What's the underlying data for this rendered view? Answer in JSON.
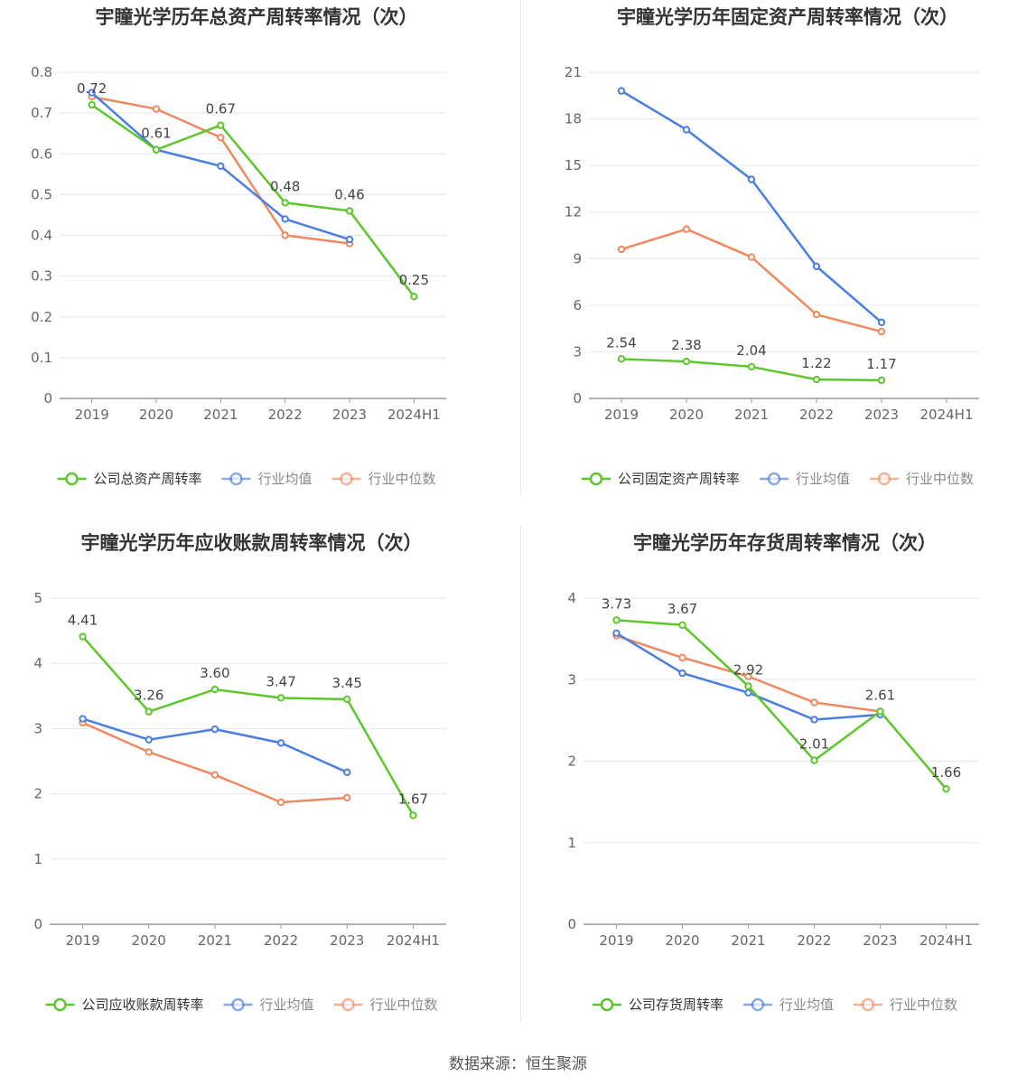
{
  "source": "数据来源：恒生聚源",
  "colors": {
    "company": "#5cc72c",
    "average": "#4a7ee0",
    "median": "#f0895f",
    "grid": "#e6e6ef",
    "axis": "#999999",
    "text": "#666666"
  },
  "chart_data": [
    {
      "type": "line",
      "title": "宇瞳光学历年总资产周转率情况（次）",
      "categories": [
        "2019",
        "2020",
        "2021",
        "2022",
        "2023",
        "2024H1"
      ],
      "y_ticks": [
        "0",
        "0.1",
        "0.2",
        "0.3",
        "0.4",
        "0.5",
        "0.6",
        "0.7",
        "0.8"
      ],
      "ylim": [
        0,
        0.8
      ],
      "grid": true,
      "legend_position": "bottom",
      "series": [
        {
          "name": "公司总资产周转率",
          "role": "company",
          "values": [
            0.72,
            0.61,
            0.67,
            0.48,
            0.46,
            0.25
          ],
          "labels": [
            "0.72",
            "0.61",
            "0.67",
            "0.48",
            "0.46",
            "0.25"
          ]
        },
        {
          "name": "行业均值",
          "role": "average",
          "values": [
            0.75,
            0.61,
            0.57,
            0.44,
            0.39,
            null
          ]
        },
        {
          "name": "行业中位数",
          "role": "median",
          "values": [
            0.74,
            0.71,
            0.64,
            0.4,
            0.38,
            null
          ]
        }
      ]
    },
    {
      "type": "line",
      "title": "宇瞳光学历年固定资产周转率情况（次）",
      "categories": [
        "2019",
        "2020",
        "2021",
        "2022",
        "2023",
        "2024H1"
      ],
      "y_ticks": [
        "0",
        "3",
        "6",
        "9",
        "12",
        "15",
        "18",
        "21"
      ],
      "ylim": [
        0,
        21
      ],
      "grid": true,
      "legend_position": "bottom",
      "series": [
        {
          "name": "公司固定资产周转率",
          "role": "company",
          "values": [
            2.54,
            2.38,
            2.04,
            1.22,
            1.17,
            null
          ],
          "labels": [
            "2.54",
            "2.38",
            "2.04",
            "1.22",
            "1.17",
            ""
          ]
        },
        {
          "name": "行业均值",
          "role": "average",
          "values": [
            19.8,
            17.3,
            14.1,
            8.5,
            4.9,
            null
          ]
        },
        {
          "name": "行业中位数",
          "role": "median",
          "values": [
            9.6,
            10.9,
            9.1,
            5.4,
            4.3,
            null
          ]
        }
      ]
    },
    {
      "type": "line",
      "title": "宇瞳光学历年应收账款周转率情况（次）",
      "categories": [
        "2019",
        "2020",
        "2021",
        "2022",
        "2023",
        "2024H1"
      ],
      "y_ticks": [
        "0",
        "1",
        "2",
        "3",
        "4",
        "5"
      ],
      "ylim": [
        0,
        5
      ],
      "grid": true,
      "legend_position": "bottom",
      "series": [
        {
          "name": "公司应收账款周转率",
          "role": "company",
          "values": [
            4.41,
            3.26,
            3.6,
            3.47,
            3.45,
            1.67
          ],
          "labels": [
            "4.41",
            "3.26",
            "3.60",
            "3.47",
            "3.45",
            "1.67"
          ]
        },
        {
          "name": "行业均值",
          "role": "average",
          "values": [
            3.15,
            2.83,
            2.99,
            2.78,
            2.33,
            null
          ]
        },
        {
          "name": "行业中位数",
          "role": "median",
          "values": [
            3.09,
            2.64,
            2.29,
            1.87,
            1.94,
            null
          ]
        }
      ]
    },
    {
      "type": "line",
      "title": "宇瞳光学历年存货周转率情况（次）",
      "categories": [
        "2019",
        "2020",
        "2021",
        "2022",
        "2023",
        "2024H1"
      ],
      "y_ticks": [
        "0",
        "1",
        "2",
        "3",
        "4"
      ],
      "ylim": [
        0,
        4
      ],
      "grid": true,
      "legend_position": "bottom",
      "series": [
        {
          "name": "公司存货周转率",
          "role": "company",
          "values": [
            3.73,
            3.67,
            2.92,
            2.01,
            2.61,
            1.66
          ],
          "labels": [
            "3.73",
            "3.67",
            "2.92",
            "2.01",
            "2.61",
            "1.66"
          ]
        },
        {
          "name": "行业均值",
          "role": "average",
          "values": [
            3.57,
            3.08,
            2.84,
            2.51,
            2.57,
            null
          ]
        },
        {
          "name": "行业中位数",
          "role": "median",
          "values": [
            3.54,
            3.27,
            3.04,
            2.72,
            2.61,
            null
          ]
        }
      ]
    }
  ]
}
